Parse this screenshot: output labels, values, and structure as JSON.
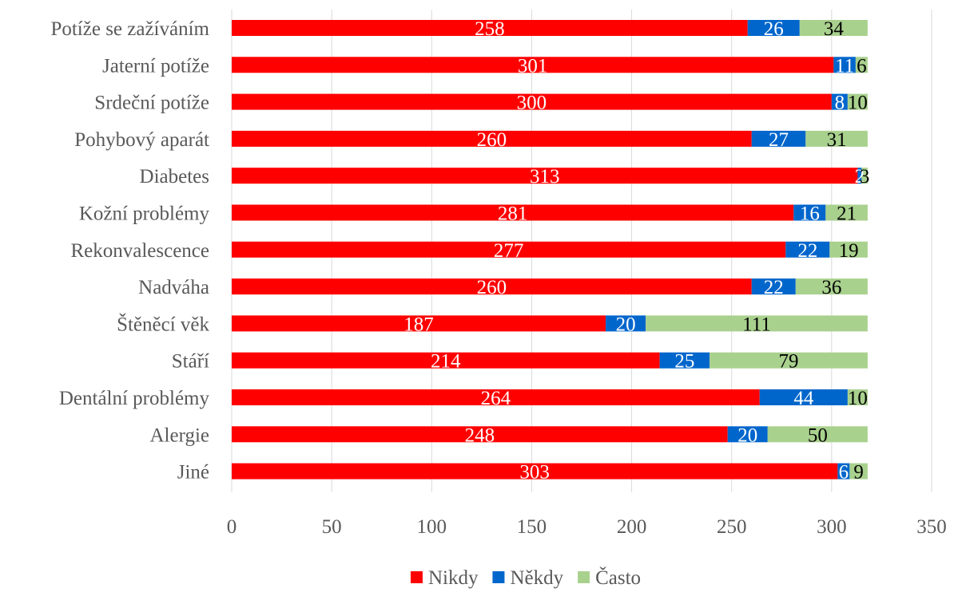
{
  "chart_data": {
    "type": "bar",
    "orientation": "horizontal",
    "stacked": true,
    "categories": [
      "Potíže se zažíváním",
      "Jaterní potíže",
      "Srdeční potíže",
      "Pohybový aparát",
      "Diabetes",
      "Kožní problémy",
      "Rekonvalescence",
      "Nadváha",
      "Štěněcí věk",
      "Stáří",
      "Dentální problémy",
      "Alergie",
      "Jiné"
    ],
    "series": [
      {
        "name": "Nikdy",
        "color": "#ff0000",
        "label_color": "#ffffff",
        "values": [
          258,
          301,
          300,
          260,
          313,
          281,
          277,
          260,
          187,
          214,
          264,
          248,
          303
        ],
        "labels": [
          "258",
          "301",
          "300",
          "260",
          "313",
          "281",
          "277",
          "260",
          "187",
          "214",
          "264",
          "248",
          "303"
        ]
      },
      {
        "name": "Někdy",
        "color": "#0066cc",
        "label_color": "#ffffff",
        "values": [
          26,
          11,
          8,
          27,
          2,
          16,
          22,
          22,
          20,
          25,
          44,
          20,
          6
        ],
        "labels": [
          "26",
          "11",
          "8",
          "27",
          "2",
          "16",
          "22",
          "22",
          "20",
          "25",
          "44",
          "20",
          "6"
        ]
      },
      {
        "name": "Často",
        "color": "#a9d18e",
        "label_color": "#000000",
        "values": [
          34,
          6,
          10,
          31,
          3,
          21,
          19,
          36,
          111,
          79,
          10,
          50,
          9
        ],
        "labels": [
          "34",
          "6",
          "10",
          "31",
          "3",
          "21",
          "19",
          "36",
          "111",
          "79",
          "10",
          "50",
          "9"
        ]
      }
    ],
    "x_ticks": [
      "0",
      "50",
      "100",
      "150",
      "200",
      "250",
      "300",
      "350"
    ],
    "xlim": [
      0,
      350
    ],
    "title": "",
    "xlabel": "",
    "ylabel": "",
    "grid": "vertical",
    "legend_position": "bottom"
  }
}
